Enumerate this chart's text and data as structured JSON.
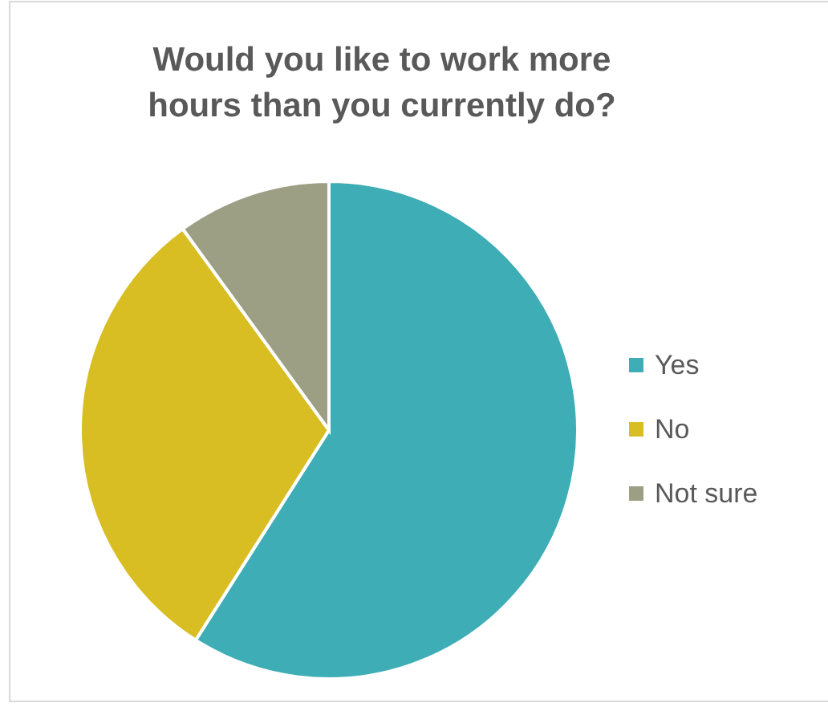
{
  "chart_data": {
    "type": "pie",
    "title": "Would you like to work more hours than you currently do?",
    "categories": [
      "Yes",
      "No",
      "Not sure"
    ],
    "values": [
      59,
      31,
      10
    ],
    "colors": [
      "#3eadb5",
      "#d8be22",
      "#9c9f84"
    ],
    "legend": "right"
  }
}
